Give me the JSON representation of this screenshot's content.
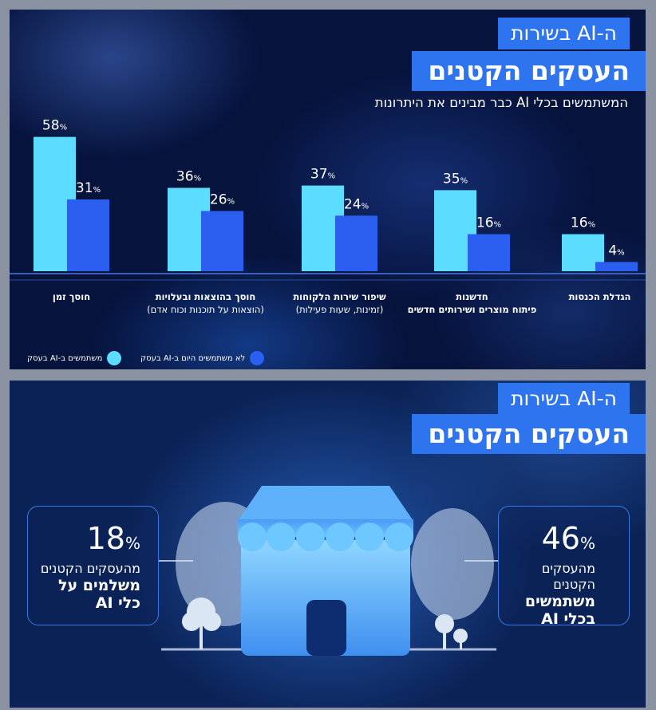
{
  "panel1": {
    "title_small": "ה-AI בשירות",
    "title_big": "העסקים הקטנים",
    "subtitle": "המשתמשים בכלי AI כבר מבינים את היתרונות"
  },
  "chart_data": {
    "type": "bar",
    "title": "המשתמשים בכלי AI כבר מבינים את היתרונות",
    "ylim": [
      0,
      62
    ],
    "grid": false,
    "legend_placement": "bottom",
    "categories": [
      {
        "label": "חוסך זמן",
        "sub": ""
      },
      {
        "label": "חוסך בהוצאות ובעלויות",
        "sub": "(הוצאות על תוכנות וכוח אדם)"
      },
      {
        "label": "שיפור שירות הלקוחות",
        "sub": "(זמינות, שעות פעילות)"
      },
      {
        "label": "חדשנות",
        "sub": "פיתוח מוצרים ושירותים חדשים"
      },
      {
        "label": "הגדלת הכנסות",
        "sub": ""
      }
    ],
    "series": [
      {
        "name": "משתמשים ב-AI בעסק",
        "values": [
          58,
          36,
          37,
          35,
          16
        ],
        "color": "#5cdcff"
      },
      {
        "name": "לא משתמשים היום ב-AI בעסק",
        "values": [
          31,
          26,
          24,
          16,
          4
        ],
        "color": "#2a5ff0"
      }
    ]
  },
  "panel2": {
    "title_small": "ה-AI בשירות",
    "title_big": "העסקים הקטנים",
    "left_stat": {
      "value": "18",
      "line1": "מהעסקים הקטנים",
      "line2": "משלמים על",
      "line3": "כלי AI"
    },
    "right_stat": {
      "value": "46",
      "line1": "מהעסקים הקטנים",
      "line2": "משתמשים",
      "line3": "בכלי AI"
    }
  }
}
